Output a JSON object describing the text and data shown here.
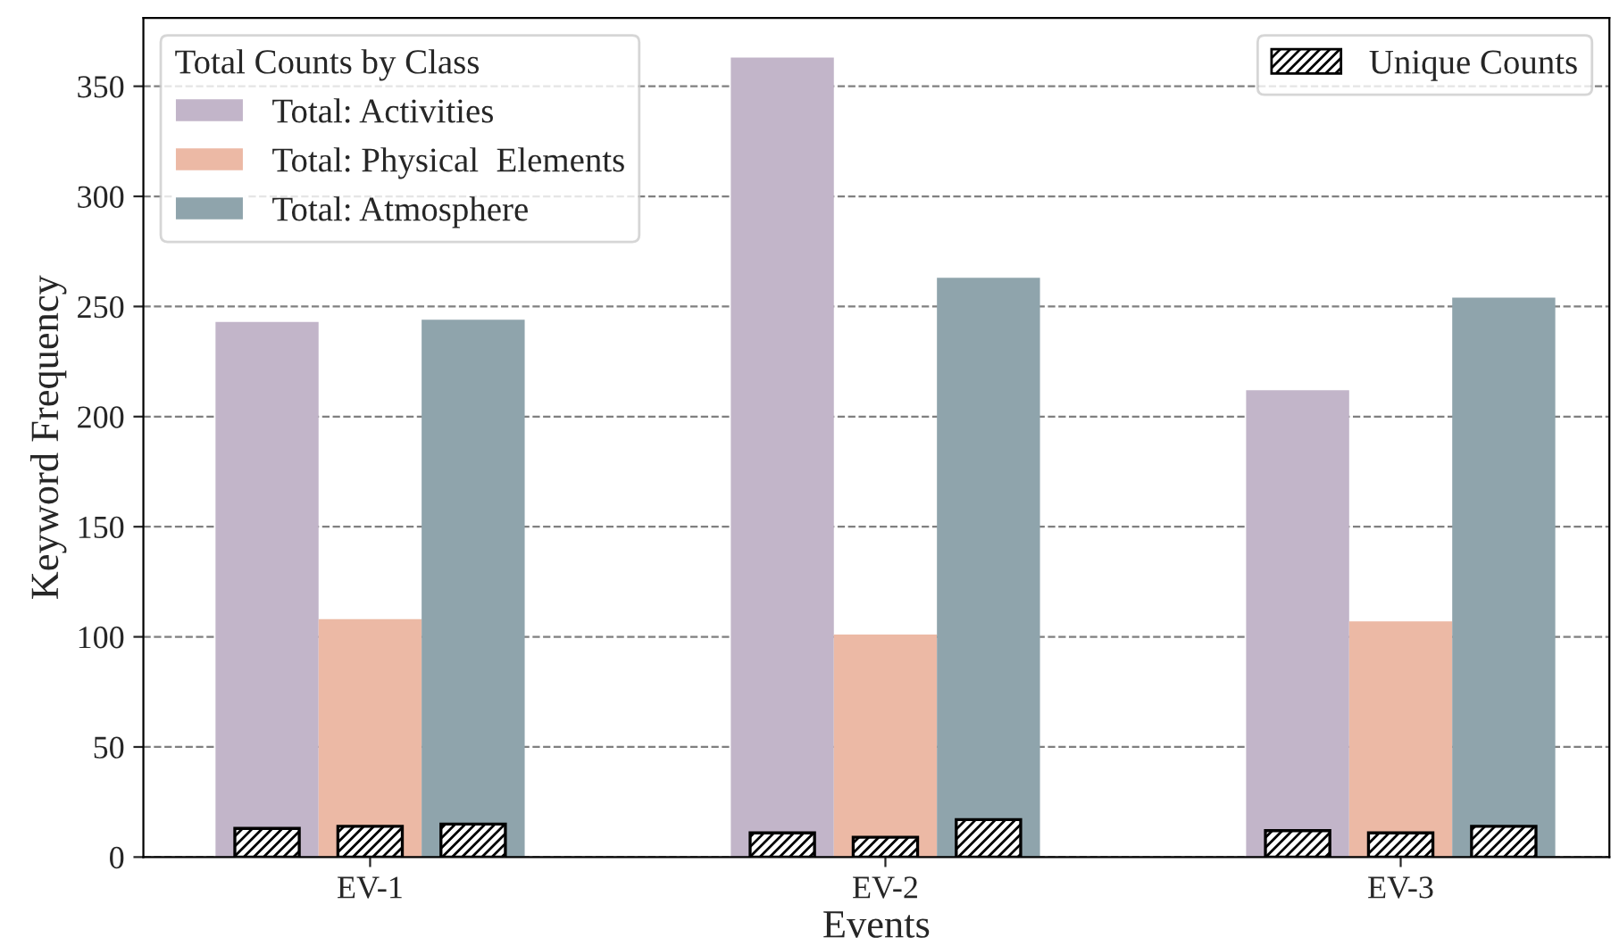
{
  "chart_data": {
    "type": "bar",
    "xlabel": "Events",
    "ylabel": "Keyword Frequency",
    "legend_title": "Total Counts by Class",
    "legend": "top left",
    "categories": [
      "EV-1",
      "EV-2",
      "EV-3"
    ],
    "series": [
      {
        "name": "Total: Activities",
        "color": "#c2b5c9",
        "values": [
          243,
          363,
          212
        ]
      },
      {
        "name": "Total: Physical  Elements",
        "color": "#ecb9a5",
        "values": [
          108,
          101,
          107
        ]
      },
      {
        "name": "Total: Atmosphere",
        "color": "#8fa4ac",
        "values": [
          244,
          263,
          254
        ]
      },
      {
        "name": "Unique Counts",
        "color": "#000000",
        "values": [
          13,
          11,
          12
        ]
      },
      {
        "color": "#000000",
        "values": [
          14,
          9,
          11
        ]
      },
      {
        "color": "#000000",
        "values": [
          15,
          17,
          14
        ]
      }
    ],
    "ylim": [
      0,
      381
    ],
    "yticks": [
      0,
      50,
      100,
      150,
      200,
      250,
      300,
      350
    ],
    "grid": "y"
  }
}
